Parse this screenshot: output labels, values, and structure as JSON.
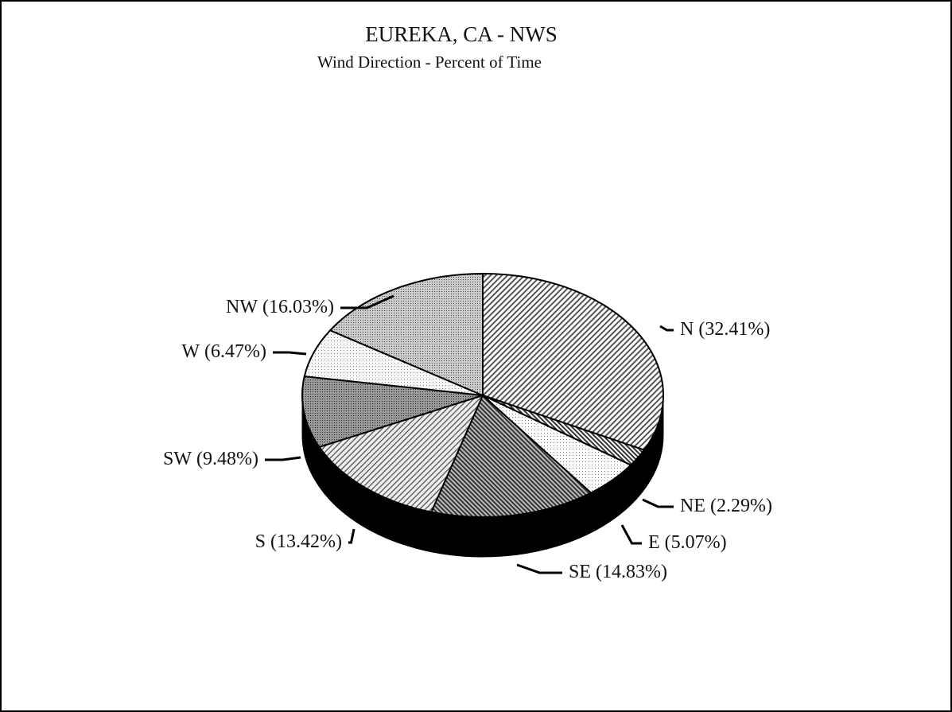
{
  "chart_data": {
    "type": "pie",
    "title": "EUREKA, CA - NWS",
    "subtitle": "Wind Direction - Percent of Time",
    "categories": [
      "N",
      "NE",
      "E",
      "SE",
      "S",
      "SW",
      "W",
      "NW"
    ],
    "values": [
      32.41,
      2.29,
      5.07,
      14.83,
      13.42,
      9.48,
      6.47,
      16.03
    ],
    "value_labels": [
      "(32.41%)",
      "(2.29%)",
      "(5.07%)",
      "(14.83%)",
      "(13.42%)",
      "(9.48%)",
      "(6.47%)",
      "(16.03%)"
    ]
  }
}
